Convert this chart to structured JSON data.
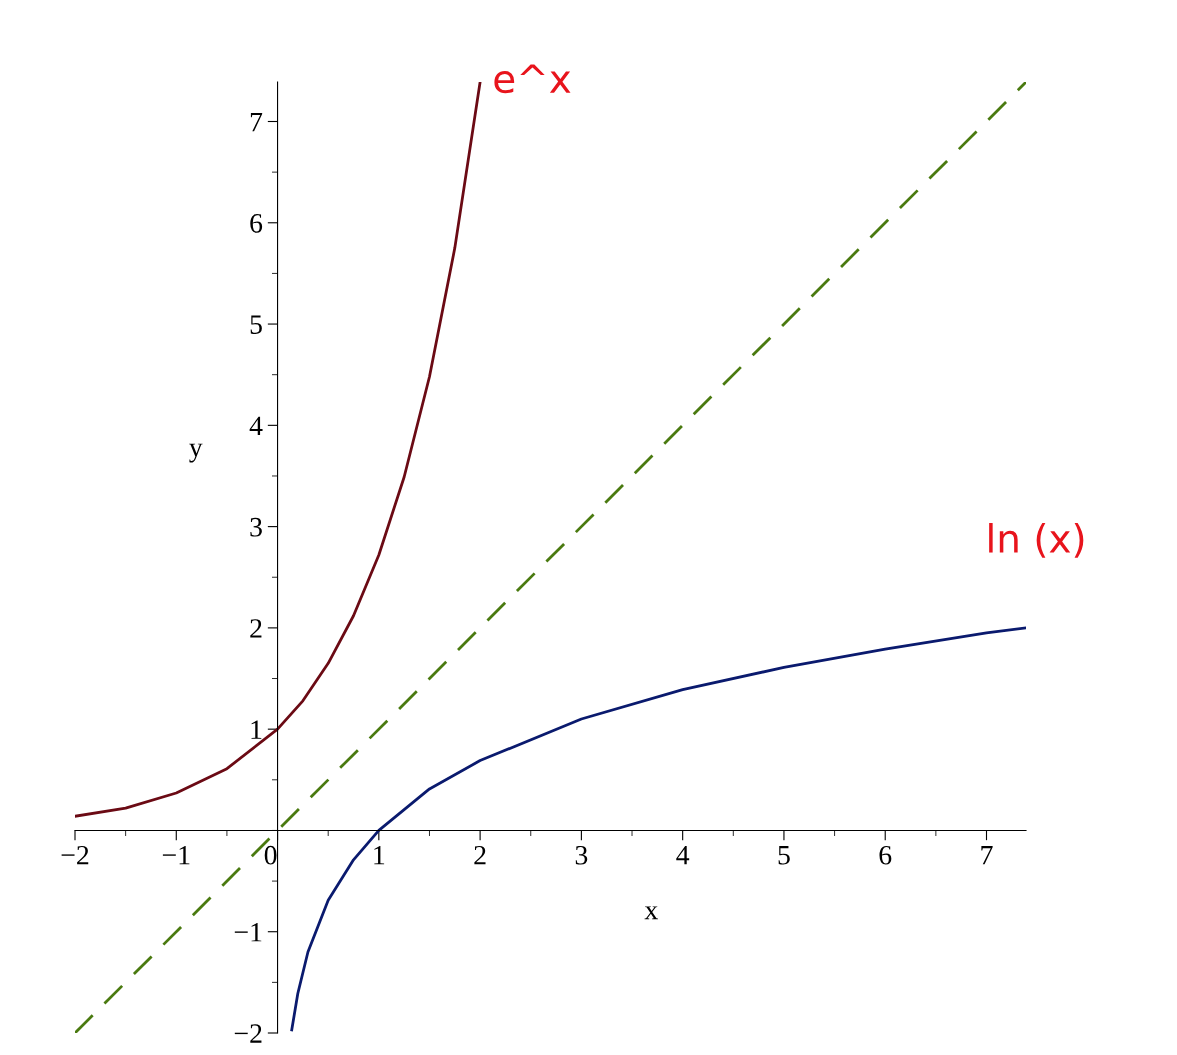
{
  "chart_data": {
    "type": "line",
    "xlabel": "x",
    "ylabel": "y",
    "xlim": [
      -2,
      7.39
    ],
    "ylim": [
      -2,
      7.39
    ],
    "xticks": [
      {
        "value": -2,
        "label": "−2"
      },
      {
        "value": -1,
        "label": "−1"
      },
      0,
      1,
      2,
      3,
      4,
      5,
      6,
      7
    ],
    "yticks": [
      {
        "value": -2,
        "label": "−2"
      },
      {
        "value": -1,
        "label": "−1"
      },
      1,
      2,
      3,
      4,
      5,
      6,
      7
    ],
    "grid": false,
    "legend": false,
    "series": [
      {
        "name": "e^x",
        "color": "#6b0a14",
        "line_style": "solid",
        "x": [
          -2,
          -1.5,
          -1,
          -0.5,
          0,
          0.25,
          0.5,
          0.75,
          1,
          1.25,
          1.5,
          1.75,
          2
        ],
        "values": [
          0.14,
          0.22,
          0.37,
          0.61,
          1,
          1.28,
          1.65,
          2.12,
          2.72,
          3.49,
          4.48,
          5.75,
          7.39
        ]
      },
      {
        "name": "ln (x)",
        "color": "#0a1a6e",
        "line_style": "solid",
        "x": [
          0.14,
          0.2,
          0.3,
          0.5,
          0.75,
          1,
          1.5,
          2,
          3,
          4,
          5,
          6,
          7,
          7.39
        ],
        "values": [
          -1.97,
          -1.61,
          -1.2,
          -0.69,
          -0.29,
          0,
          0.41,
          0.69,
          1.1,
          1.39,
          1.61,
          1.79,
          1.95,
          2
        ]
      },
      {
        "color": "#4a7a10",
        "line_style": "dashed",
        "x": [
          -2,
          7.39
        ],
        "values": [
          -2,
          7.39
        ]
      }
    ]
  }
}
